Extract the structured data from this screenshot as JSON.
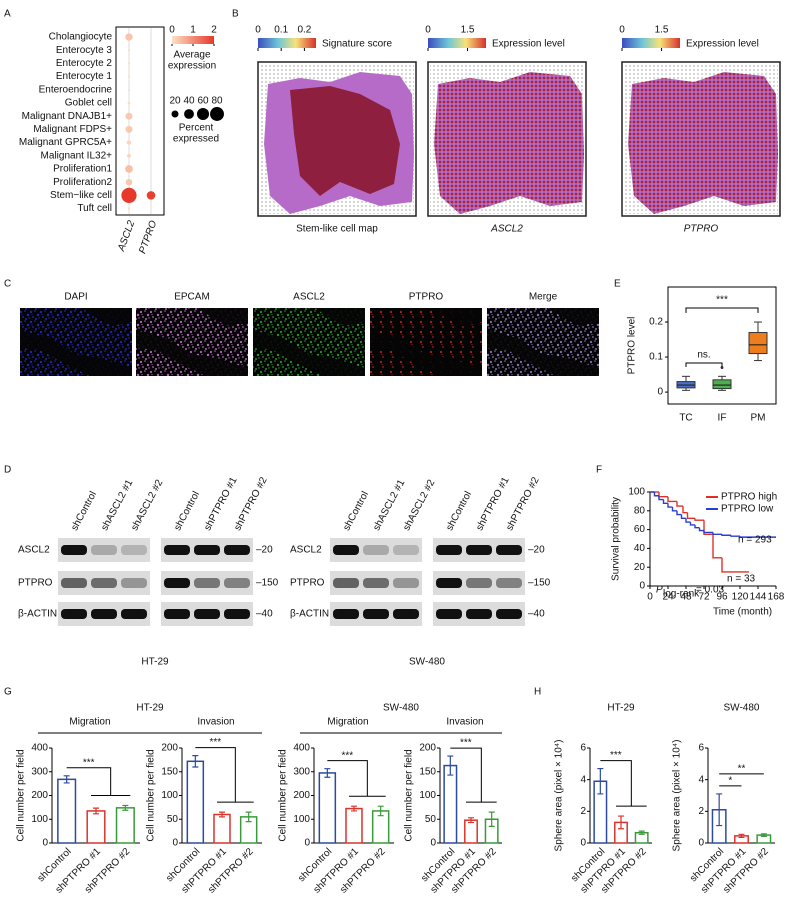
{
  "A": {
    "letter": "A",
    "rows": [
      "Cholangiocyte",
      "Enterocyte 3",
      "Enterocyte 2",
      "Enterocyte 1",
      "Enteroendocrine",
      "Goblet cell",
      "Malignant DNAJB1+",
      "Malignant FDPS+",
      "Malignant GPRC5A+",
      "Malignant IL32+",
      "Proliferation1",
      "Proliferation2",
      "Stem−like cell",
      "Tuft cell"
    ],
    "columns": [
      "ASCL2",
      "PTPRO"
    ],
    "avg_expression": [
      [
        0.35,
        0
      ],
      [
        0.05,
        0
      ],
      [
        0.05,
        0
      ],
      [
        0.05,
        0
      ],
      [
        0.05,
        0
      ],
      [
        0.05,
        0
      ],
      [
        0.3,
        0
      ],
      [
        0.3,
        0
      ],
      [
        0.15,
        0
      ],
      [
        0.15,
        0
      ],
      [
        0.4,
        0
      ],
      [
        0.3,
        0
      ],
      [
        2,
        1.9
      ],
      [
        0.05,
        0
      ]
    ],
    "pct_expressed": [
      [
        22,
        0
      ],
      [
        2,
        0
      ],
      [
        2,
        0
      ],
      [
        2,
        0
      ],
      [
        2,
        0
      ],
      [
        3,
        0
      ],
      [
        20,
        0
      ],
      [
        20,
        0
      ],
      [
        8,
        0
      ],
      [
        6,
        0
      ],
      [
        24,
        0
      ],
      [
        18,
        0
      ],
      [
        95,
        30
      ],
      [
        2,
        0
      ]
    ],
    "color_lim": [
      0,
      2
    ],
    "color_ticks": [
      0,
      1,
      2
    ],
    "color_title": [
      "Average",
      "expression"
    ],
    "size_ticks": [
      20,
      40,
      60,
      80
    ],
    "size_title": [
      "Percent",
      "expressed"
    ]
  },
  "B": {
    "letter": "B",
    "maps": [
      {
        "scale_lim": [
          0,
          0.25
        ],
        "scale_ticks": [
          0,
          0.1,
          0.2
        ],
        "scale_title": "Signature score",
        "caption": "Stem-like cell map"
      },
      {
        "scale_lim": [
          0,
          2.2
        ],
        "scale_ticks": [
          0,
          1.5
        ],
        "scale_title": "Expression level",
        "caption": "ASCL2"
      },
      {
        "scale_lim": [
          0,
          2.2
        ],
        "scale_ticks": [
          0,
          1.5
        ],
        "scale_title": "Expression level",
        "caption": "PTPRO"
      }
    ]
  },
  "C": {
    "letter": "C",
    "channels": [
      {
        "name": "DAPI",
        "color": "#2a2ad0"
      },
      {
        "name": "EPCAM",
        "color": "#c77ccf"
      },
      {
        "name": "ASCL2",
        "color": "#2fa82f"
      },
      {
        "name": "PTPRO",
        "color": "#c0262a"
      },
      {
        "name": "Merge",
        "color": "#9a86c8"
      }
    ]
  },
  "D": {
    "letter": "D",
    "proteins": [
      "ASCL2",
      "PTPRO",
      "β-ACTIN"
    ],
    "markers": [
      "–20",
      "–150",
      "–40"
    ],
    "blots": [
      {
        "cell_line": "HT-29",
        "groups": [
          [
            "shControl",
            "shASCL2 #1",
            "shASCL2 #2"
          ],
          [
            "shControl",
            "shPTPRO #1",
            "shPTPRO #2"
          ]
        ]
      },
      {
        "cell_line": "SW-480",
        "groups": [
          [
            "shControl",
            "shASCL2 #1",
            "shASCL2 #2"
          ],
          [
            "shControl",
            "shPTPRO #1",
            "shPTPRO #2"
          ]
        ]
      }
    ]
  },
  "E": {
    "letter": "E",
    "type": "box",
    "categories": [
      "TC",
      "IF",
      "PM"
    ],
    "colors": [
      "#4a6fc4",
      "#4fae4f",
      "#ee7d1c"
    ],
    "min": [
      0.005,
      0.005,
      0.09
    ],
    "q1": [
      0.012,
      0.01,
      0.11
    ],
    "median": [
      0.02,
      0.02,
      0.135
    ],
    "q3": [
      0.03,
      0.035,
      0.17
    ],
    "max": [
      0.045,
      0.045,
      0.2
    ],
    "outliers": [
      [],
      [
        0.07
      ],
      []
    ],
    "ylim": [
      -0.034,
      0.3
    ],
    "yticks": [
      0,
      0.1,
      0.2
    ],
    "ylabel": "PTPRO level",
    "annotations": [
      "***",
      "ns."
    ]
  },
  "F": {
    "letter": "F",
    "type": "line",
    "xlim": [
      0,
      168
    ],
    "xticks": [
      0,
      24,
      48,
      72,
      96,
      120,
      144,
      168
    ],
    "ylim": [
      0,
      100
    ],
    "yticks": [
      0,
      20,
      40,
      60,
      80,
      100
    ],
    "xlabel": "Time (month)",
    "ylabel": "Survival probability",
    "series": [
      {
        "name": "PTPRO high",
        "color": "#e0302a",
        "x": [
          0,
          12,
          24,
          36,
          44,
          50,
          60,
          72,
          84,
          96,
          132
        ],
        "values": [
          100,
          95,
          90,
          85,
          78,
          72,
          70,
          55,
          30,
          15,
          15
        ]
      },
      {
        "name": "PTPRO low",
        "color": "#2a3fd0",
        "x": [
          0,
          6,
          12,
          18,
          24,
          30,
          36,
          42,
          48,
          54,
          60,
          66,
          72,
          84,
          96,
          108,
          120,
          168
        ],
        "values": [
          100,
          96,
          92,
          88,
          84,
          80,
          76,
          72,
          68,
          65,
          62,
          59,
          57,
          55,
          54,
          53,
          52,
          52
        ]
      }
    ],
    "n_labels": [
      "n = 293",
      "n = 33"
    ],
    "p_label": [
      "P",
      "log-rank",
      "= 0.03"
    ]
  },
  "G": {
    "letter": "G",
    "categories": [
      "shControl",
      "shPTPRO #1",
      "shPTPRO #2"
    ],
    "colors": [
      "#2b4ba0",
      "#d9342b",
      "#3a9a3a"
    ],
    "ylabel": "Cell number per field",
    "groups": [
      {
        "title": "HT-29",
        "charts": [
          {
            "title": "Migration",
            "ylim": [
              0,
              400
            ],
            "yticks": [
              0,
              100,
              200,
              300,
              400
            ],
            "values": [
              268,
              135,
              148
            ],
            "errors": [
              15,
              12,
              10
            ],
            "sig": [
              "***"
            ]
          },
          {
            "title": "Invasion",
            "ylim": [
              0,
              200
            ],
            "yticks": [
              0,
              50,
              100,
              150,
              200
            ],
            "values": [
              172,
              60,
              55
            ],
            "errors": [
              12,
              5,
              10
            ],
            "sig": [
              "***"
            ]
          }
        ]
      },
      {
        "title": "SW-480",
        "charts": [
          {
            "title": "Migration",
            "ylim": [
              0,
              400
            ],
            "yticks": [
              0,
              100,
              200,
              300,
              400
            ],
            "values": [
              295,
              145,
              135
            ],
            "errors": [
              18,
              10,
              20
            ],
            "sig": [
              "***"
            ]
          },
          {
            "title": "Invasion",
            "ylim": [
              0,
              200
            ],
            "yticks": [
              0,
              50,
              100,
              150,
              200
            ],
            "values": [
              163,
              48,
              50
            ],
            "errors": [
              20,
              5,
              15
            ],
            "sig": [
              "***"
            ]
          }
        ]
      }
    ]
  },
  "H": {
    "letter": "H",
    "categories": [
      "shControl",
      "shPTPRO #1",
      "shPTPRO #2"
    ],
    "colors": [
      "#2b4ba0",
      "#d9342b",
      "#3a9a3a"
    ],
    "ylabel": "Sphere area (pixel × 10⁴)",
    "groups": [
      {
        "title": "HT-29",
        "charts": [
          {
            "ylim": [
              0,
              6
            ],
            "yticks": [
              0,
              2,
              4,
              6
            ],
            "values": [
              3.9,
              1.3,
              0.65
            ],
            "errors": [
              0.8,
              0.4,
              0.1
            ],
            "sig": [
              "***"
            ]
          }
        ]
      },
      {
        "title": "SW-480",
        "charts": [
          {
            "ylim": [
              0,
              6
            ],
            "yticks": [
              0,
              2,
              4,
              6
            ],
            "values": [
              2.1,
              0.45,
              0.5
            ],
            "errors": [
              1.0,
              0.1,
              0.08
            ],
            "sig": [
              "*",
              "**"
            ]
          }
        ]
      }
    ]
  }
}
